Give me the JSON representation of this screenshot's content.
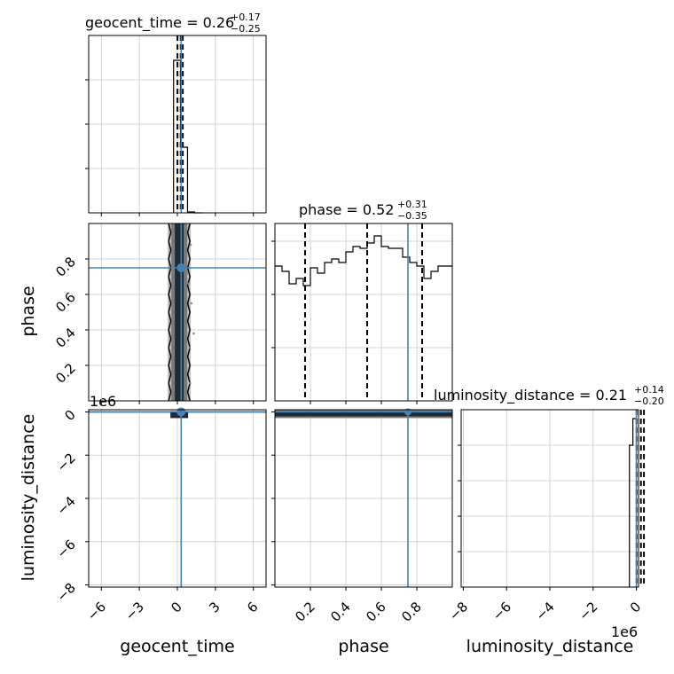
{
  "chart_data": {
    "type": "corner",
    "grid": true,
    "parameters": [
      "geocent_time",
      "phase",
      "luminosity_distance"
    ],
    "titles": [
      {
        "param": "geocent_time",
        "label": "geocent_time",
        "median": "0.26",
        "plus": "+0.17",
        "minus": "−0.25"
      },
      {
        "param": "phase",
        "label": "phase",
        "median": "0.52",
        "plus": "+0.31",
        "minus": "−0.35"
      },
      {
        "param": "luminosity_distance",
        "label": "luminosity_distance",
        "median": "0.21",
        "plus": "+0.14",
        "minus": "−0.20"
      }
    ],
    "axis_labels": {
      "x": [
        "geocent_time",
        "phase",
        "luminosity_distance"
      ],
      "y": [
        "phase",
        "luminosity_distance"
      ]
    },
    "offset_text": {
      "luminosity_y": "1e6",
      "luminosity_x": "1e6"
    },
    "ranges": {
      "geocent_time": [
        -7,
        7
      ],
      "phase": [
        0.0,
        1.0
      ],
      "luminosity_distance": [
        -8.1,
        0.1
      ]
    },
    "ticks": {
      "geocent_time": {
        "values": [
          -6,
          -3,
          0,
          3,
          6
        ],
        "labels": [
          "−6",
          "−3",
          "0",
          "3",
          "6"
        ]
      },
      "phase_x": {
        "values": [
          0.2,
          0.4,
          0.6,
          0.8
        ],
        "labels": [
          "0.2",
          "0.4",
          "0.6",
          "0.8"
        ]
      },
      "phase_y": {
        "values": [
          0.2,
          0.4,
          0.6,
          0.8
        ],
        "labels": [
          "0.2",
          "0.4",
          "0.6",
          "0.8"
        ]
      },
      "luminosity_distance": {
        "values": [
          -8,
          -6,
          -4,
          -2,
          0
        ],
        "labels": [
          "−8",
          "−6",
          "−4",
          "−2",
          "0"
        ]
      }
    },
    "truths": {
      "geocent_time": 0.3,
      "phase": 0.75,
      "luminosity_distance": 0.0
    },
    "truth_color": "#4682b4",
    "quantiles": {
      "geocent_time": [
        0.01,
        0.26,
        0.43
      ],
      "phase": [
        0.17,
        0.52,
        0.83
      ],
      "luminosity_distance": [
        0.01,
        0.21,
        0.35
      ]
    },
    "hist_geocent_time": {
      "edges": [
        -0.3,
        0.25,
        0.8,
        1.35,
        1.9
      ],
      "counts": [
        0.86,
        0.37,
        0.005,
        0.0
      ],
      "ymax": 1.0,
      "ytick_values": [
        0.25,
        0.5,
        0.75
      ]
    },
    "hist_phase": {
      "edges": [
        0.0,
        0.04,
        0.08,
        0.12,
        0.16,
        0.2,
        0.24,
        0.28,
        0.32,
        0.36,
        0.4,
        0.44,
        0.48,
        0.52,
        0.56,
        0.6,
        0.64,
        0.68,
        0.72,
        0.76,
        0.8,
        0.84,
        0.88,
        0.92,
        0.96,
        1.0
      ],
      "counts": [
        0.76,
        0.73,
        0.66,
        0.69,
        0.65,
        0.75,
        0.72,
        0.78,
        0.8,
        0.78,
        0.84,
        0.87,
        0.86,
        0.89,
        0.93,
        0.87,
        0.86,
        0.86,
        0.81,
        0.78,
        0.76,
        0.69,
        0.73,
        0.76,
        0.76
      ],
      "ymax": 1.0,
      "ytick_values": [
        0.3,
        0.6,
        0.9
      ]
    },
    "hist_luminosity_distance": {
      "edges": [
        -0.32,
        -0.16,
        0.0,
        0.02
      ],
      "counts": [
        0.8,
        0.95,
        0.0
      ],
      "ymax": 1.0,
      "ytick_values": [
        0.2,
        0.4,
        0.6,
        0.8
      ]
    },
    "colors": {
      "grid": "#c8c8c8",
      "contour": "#000000",
      "density_dark": "#1f2a33",
      "density_mid": "#7a7a7a",
      "density_light": "#bfbfbf",
      "truth": "#4682b4"
    }
  }
}
